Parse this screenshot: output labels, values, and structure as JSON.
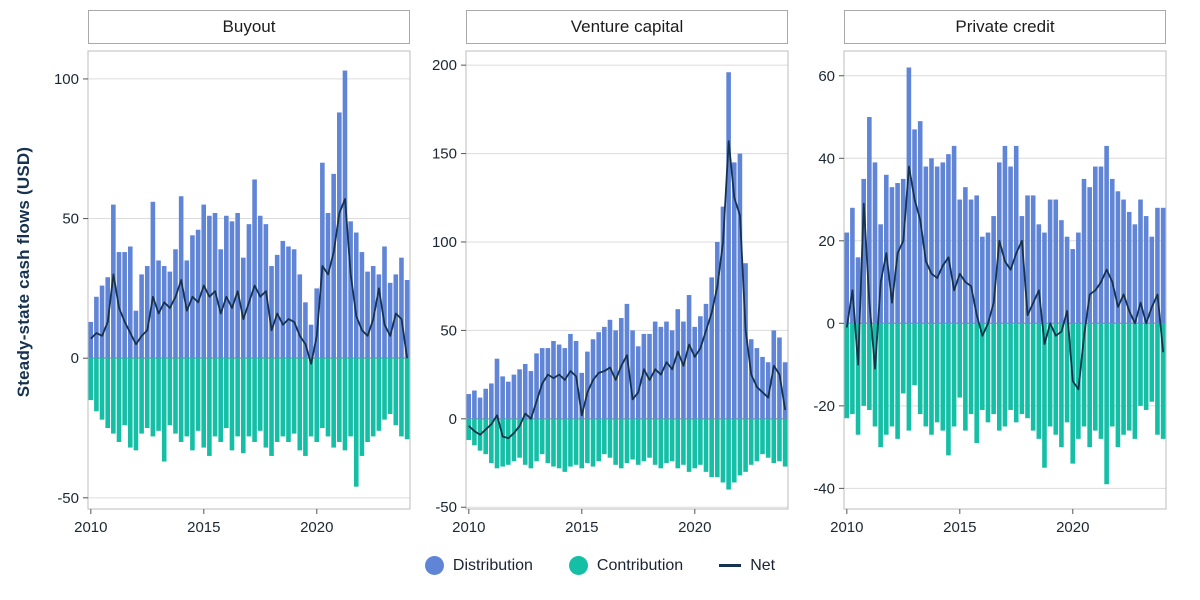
{
  "figure": {
    "y_axis_label": "Steady-state cash flows (USD)"
  },
  "colors": {
    "distribution": "#6185d6",
    "contribution": "#14bfa6",
    "net": "#16324d",
    "grid": "#dcdcdc",
    "zero_line": "#9aa0a6",
    "panel_border": "#bdbdbd",
    "tick_text": "#1c2733"
  },
  "legend": {
    "items": [
      {
        "label": "Distribution",
        "type": "circle",
        "color": "#6185d6"
      },
      {
        "label": "Contribution",
        "type": "circle",
        "color": "#14bfa6"
      },
      {
        "label": "Net",
        "type": "line",
        "color": "#16324d"
      }
    ]
  },
  "chart_data": [
    {
      "type": "bar",
      "title": "Buyout",
      "xlabel": "",
      "ylabel": "Steady-state cash flows (USD)",
      "x_frequency": "quarterly",
      "x_range": "2010Q1-2024Q1",
      "n_points": 57,
      "xticks": {
        "labels": [
          "2010",
          "2015",
          "2020"
        ],
        "indices": [
          0,
          20,
          40
        ]
      },
      "ylim": [
        -54,
        110
      ],
      "yticks": [
        -50,
        0,
        50,
        100
      ],
      "series": [
        {
          "name": "Distribution",
          "type": "bar",
          "values": [
            13,
            22,
            26,
            29,
            55,
            38,
            38,
            40,
            17,
            30,
            33,
            56,
            35,
            33,
            31,
            39,
            58,
            35,
            44,
            46,
            55,
            51,
            52,
            39,
            51,
            49,
            52,
            36,
            48,
            64,
            51,
            48,
            33,
            37,
            42,
            40,
            39,
            30,
            20,
            12,
            25,
            70,
            52,
            66,
            88,
            103,
            49,
            45,
            38,
            31,
            33,
            30,
            40,
            27,
            30,
            36,
            28
          ]
        },
        {
          "name": "Contribution",
          "type": "bar",
          "values": [
            -15,
            -19,
            -22,
            -25,
            -27,
            -30,
            -24,
            -32,
            -33,
            -27,
            -25,
            -28,
            -26,
            -37,
            -24,
            -27,
            -30,
            -28,
            -33,
            -26,
            -32,
            -35,
            -28,
            -30,
            -25,
            -33,
            -28,
            -34,
            -28,
            -30,
            -26,
            -32,
            -35,
            -30,
            -28,
            -30,
            -27,
            -33,
            -35,
            -28,
            -30,
            -25,
            -28,
            -32,
            -30,
            -33,
            -28,
            -46,
            -35,
            -30,
            -28,
            -26,
            -22,
            -20,
            -24,
            -28,
            -29
          ]
        },
        {
          "name": "Net",
          "type": "line",
          "values": [
            7,
            9,
            8,
            13,
            30,
            18,
            13,
            9,
            5,
            8,
            10,
            22,
            16,
            20,
            18,
            22,
            28,
            17,
            22,
            20,
            26,
            22,
            24,
            16,
            22,
            18,
            24,
            14,
            20,
            26,
            22,
            24,
            10,
            16,
            12,
            14,
            13,
            8,
            5,
            -2,
            8,
            33,
            30,
            38,
            52,
            57,
            30,
            15,
            10,
            8,
            14,
            25,
            12,
            8,
            16,
            14,
            0
          ]
        }
      ]
    },
    {
      "type": "bar",
      "title": "Venture capital",
      "xlabel": "",
      "ylabel": "Steady-state cash flows (USD)",
      "x_frequency": "quarterly",
      "x_range": "2010Q1-2024Q1",
      "n_points": 57,
      "xticks": {
        "labels": [
          "2010",
          "2015",
          "2020"
        ],
        "indices": [
          0,
          20,
          40
        ]
      },
      "ylim": [
        -51,
        208
      ],
      "yticks": [
        -50,
        0,
        50,
        100,
        150,
        200
      ],
      "series": [
        {
          "name": "Distribution",
          "type": "bar",
          "values": [
            14,
            16,
            12,
            17,
            20,
            34,
            24,
            21,
            25,
            28,
            31,
            27,
            37,
            40,
            40,
            44,
            42,
            40,
            48,
            44,
            26,
            38,
            45,
            49,
            52,
            56,
            50,
            57,
            65,
            50,
            41,
            48,
            48,
            55,
            52,
            55,
            50,
            62,
            55,
            70,
            52,
            58,
            65,
            80,
            100,
            120,
            196,
            145,
            150,
            88,
            45,
            40,
            35,
            32,
            50,
            46,
            32
          ]
        },
        {
          "name": "Contribution",
          "type": "bar",
          "values": [
            -12,
            -15,
            -18,
            -20,
            -25,
            -28,
            -27,
            -26,
            -24,
            -22,
            -26,
            -28,
            -24,
            -20,
            -25,
            -27,
            -28,
            -30,
            -27,
            -26,
            -28,
            -25,
            -27,
            -24,
            -20,
            -22,
            -26,
            -28,
            -25,
            -23,
            -26,
            -24,
            -22,
            -26,
            -28,
            -25,
            -24,
            -28,
            -26,
            -30,
            -28,
            -26,
            -30,
            -33,
            -33,
            -36,
            -40,
            -36,
            -32,
            -30,
            -26,
            -24,
            -20,
            -22,
            -25,
            -24,
            -27
          ]
        },
        {
          "name": "Net",
          "type": "line",
          "values": [
            -4,
            -7,
            -9,
            -6,
            -3,
            2,
            -10,
            -11,
            -8,
            -4,
            3,
            0,
            10,
            20,
            25,
            23,
            25,
            22,
            27,
            24,
            2,
            15,
            22,
            26,
            27,
            29,
            22,
            30,
            36,
            11,
            15,
            28,
            22,
            28,
            25,
            32,
            28,
            38,
            30,
            42,
            35,
            40,
            50,
            60,
            75,
            100,
            157,
            125,
            115,
            50,
            25,
            18,
            15,
            12,
            30,
            25,
            5
          ]
        }
      ]
    },
    {
      "type": "bar",
      "title": "Private credit",
      "xlabel": "",
      "ylabel": "Steady-state cash flows (USD)",
      "x_frequency": "quarterly",
      "x_range": "2010Q1-2024Q1",
      "n_points": 57,
      "xticks": {
        "labels": [
          "2010",
          "2015",
          "2020"
        ],
        "indices": [
          0,
          20,
          40
        ]
      },
      "ylim": [
        -45,
        66
      ],
      "yticks": [
        -40,
        -20,
        0,
        20,
        40,
        60
      ],
      "series": [
        {
          "name": "Distribution",
          "type": "bar",
          "values": [
            22,
            28,
            16,
            35,
            50,
            39,
            24,
            36,
            33,
            34,
            35,
            62,
            47,
            49,
            38,
            40,
            38,
            39,
            41,
            43,
            30,
            33,
            30,
            31,
            21,
            22,
            26,
            39,
            43,
            38,
            43,
            26,
            31,
            31,
            24,
            22,
            30,
            30,
            25,
            21,
            18,
            22,
            35,
            33,
            38,
            38,
            43,
            35,
            32,
            30,
            27,
            24,
            30,
            26,
            21,
            28,
            28
          ]
        },
        {
          "name": "Contribution",
          "type": "bar",
          "values": [
            -23,
            -22,
            -27,
            -20,
            -21,
            -25,
            -30,
            -27,
            -25,
            -28,
            -17,
            -26,
            -15,
            -22,
            -25,
            -27,
            -24,
            -26,
            -32,
            -25,
            -18,
            -26,
            -22,
            -29,
            -21,
            -24,
            -22,
            -26,
            -25,
            -21,
            -24,
            -22,
            -23,
            -26,
            -28,
            -35,
            -25,
            -27,
            -30,
            -24,
            -34,
            -28,
            -25,
            -30,
            -26,
            -28,
            -39,
            -25,
            -30,
            -27,
            -26,
            -28,
            -20,
            -21,
            -19,
            -27,
            -28
          ]
        },
        {
          "name": "Net",
          "type": "line",
          "values": [
            -1,
            8,
            -10,
            29,
            5,
            -11,
            10,
            17,
            5,
            17,
            20,
            38,
            30,
            25,
            15,
            12,
            11,
            14,
            16,
            8,
            12,
            10,
            9,
            2,
            -3,
            0,
            5,
            20,
            15,
            13,
            17,
            20,
            2,
            5,
            8,
            -5,
            0,
            -3,
            -2,
            3,
            -14,
            -16,
            -3,
            7,
            8,
            10,
            13,
            10,
            4,
            7,
            3,
            0,
            5,
            0,
            4,
            7,
            -7
          ]
        }
      ]
    }
  ]
}
